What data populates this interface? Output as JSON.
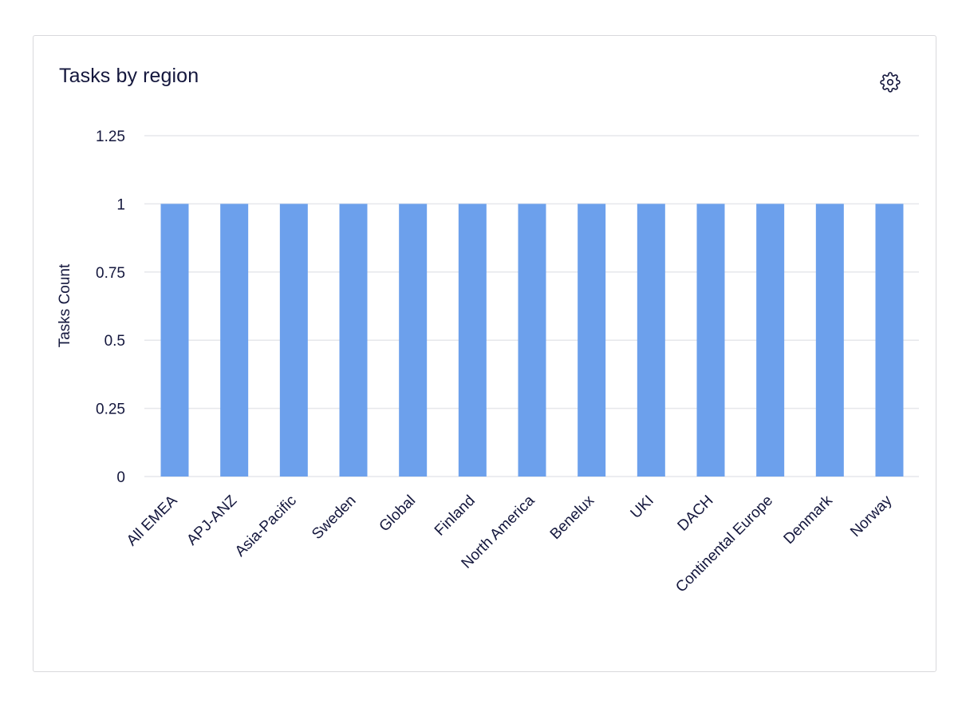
{
  "card": {
    "title": "Tasks by region"
  },
  "icons": {
    "settings": "gear-icon"
  },
  "colors": {
    "bar": "#6ca0ec",
    "grid": "#e6e7eb",
    "text": "#14173d"
  },
  "chart_data": {
    "type": "bar",
    "title": "Tasks by region",
    "xlabel": "",
    "ylabel": "Tasks Count",
    "categories": [
      "All EMEA",
      "APJ-ANZ",
      "Asia-Pacific",
      "Sweden",
      "Global",
      "Finland",
      "North America",
      "Benelux",
      "UKI",
      "DACH",
      "Continental Europe",
      "Denmark",
      "Norway"
    ],
    "values": [
      1,
      1,
      1,
      1,
      1,
      1,
      1,
      1,
      1,
      1,
      1,
      1,
      1
    ],
    "ylim": [
      0,
      1.25
    ],
    "yticks": [
      0,
      0.25,
      0.5,
      0.75,
      1,
      1.25
    ],
    "ytick_labels": [
      "0",
      "0.25",
      "0.5",
      "0.75",
      "1",
      "1.25"
    ],
    "grid": true,
    "legend": "none"
  }
}
